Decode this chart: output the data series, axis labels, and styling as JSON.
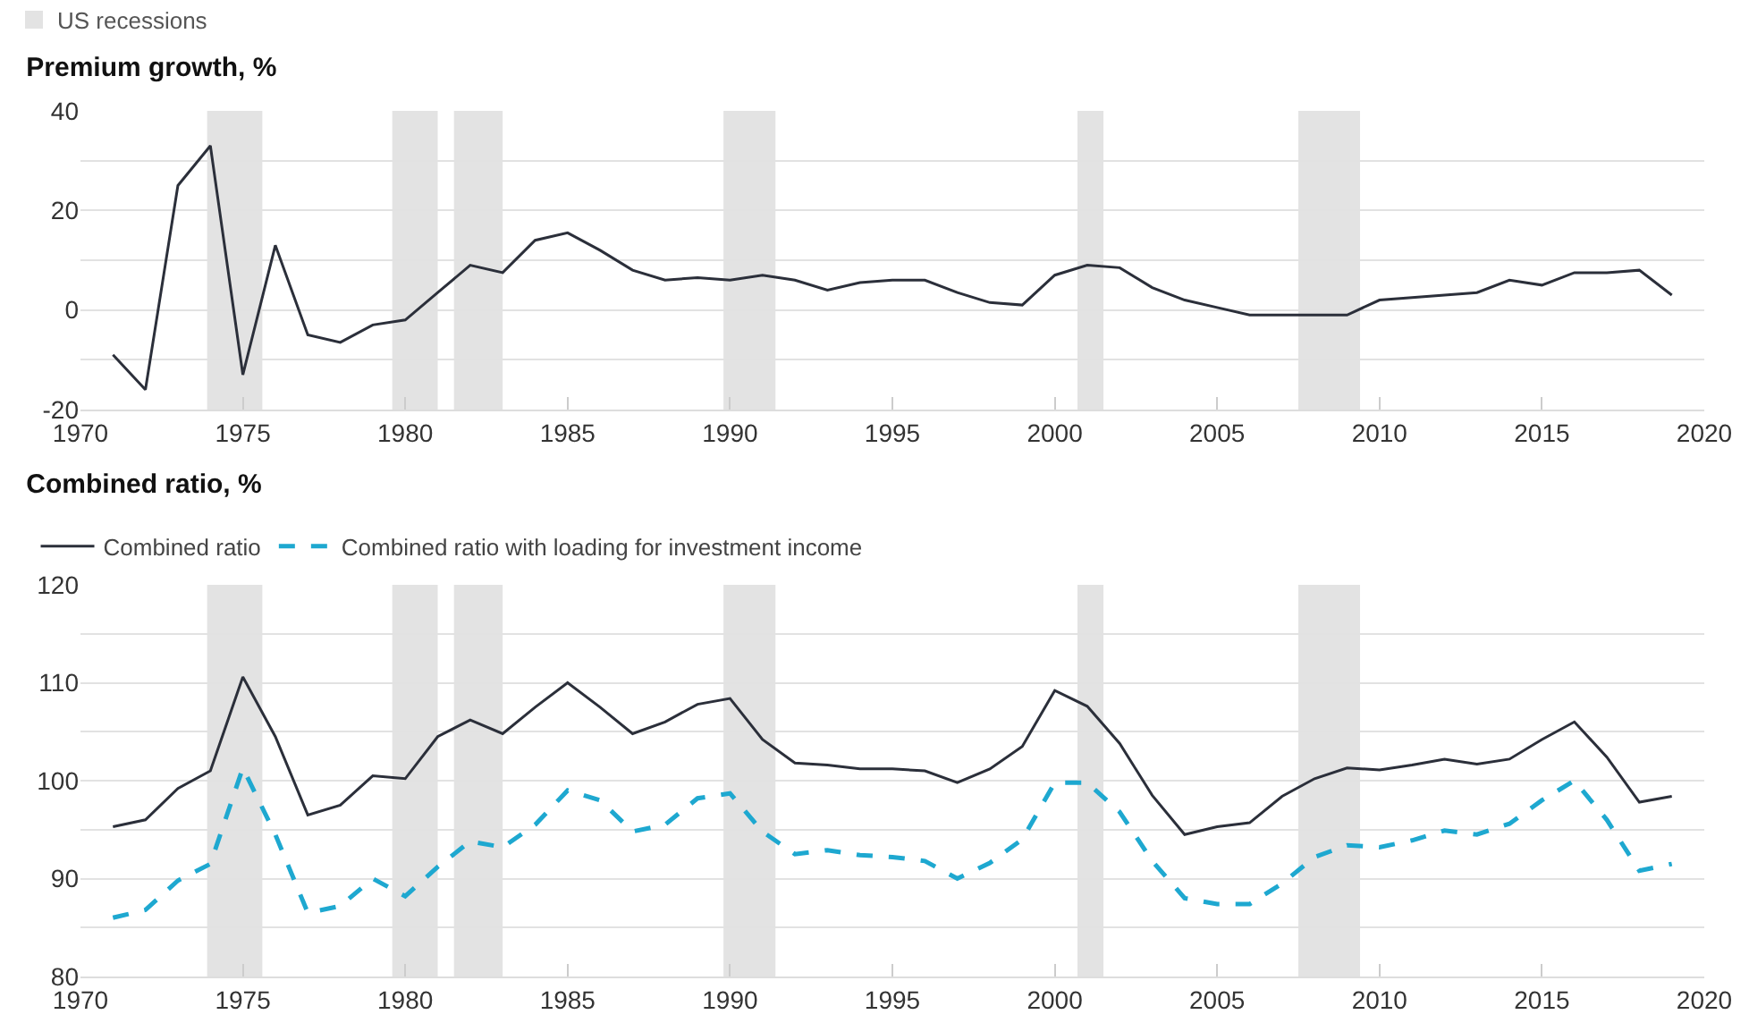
{
  "chart_data": [
    {
      "type": "line",
      "title": "Premium growth, %",
      "x": [
        1971,
        1972,
        1973,
        1974,
        1975,
        1976,
        1977,
        1978,
        1979,
        1980,
        1981,
        1982,
        1983,
        1984,
        1985,
        1986,
        1987,
        1988,
        1989,
        1990,
        1991,
        1992,
        1993,
        1994,
        1995,
        1996,
        1997,
        1998,
        1999,
        2000,
        2001,
        2002,
        2003,
        2004,
        2005,
        2006,
        2007,
        2008,
        2009,
        2010,
        2011,
        2012,
        2013,
        2014,
        2015,
        2016,
        2017,
        2018,
        2019
      ],
      "series": [
        {
          "color": "#2b2f3a",
          "values": [
            -9,
            -16,
            25,
            33,
            -13,
            13,
            -5,
            -6.5,
            -3,
            -2,
            3.5,
            9,
            7.5,
            14,
            15.5,
            12,
            8,
            6,
            6.5,
            6,
            7,
            6,
            4,
            5.5,
            6,
            6,
            3.5,
            1.5,
            1,
            7,
            9,
            8.5,
            4.5,
            2,
            0.5,
            -1,
            -1,
            -1,
            -1,
            2,
            2.5,
            3,
            3.5,
            6,
            5,
            7.5,
            7.5,
            8,
            3
          ]
        }
      ],
      "xlim": [
        1970,
        2020
      ],
      "xticks": [
        1970,
        1975,
        1980,
        1985,
        1990,
        1995,
        2000,
        2005,
        2010,
        2015,
        2020
      ],
      "ylim": [
        -20,
        40
      ],
      "yticks": [
        -20,
        {
          "value": -10,
          "label": null
        },
        0,
        {
          "value": 10,
          "label": null
        },
        20,
        {
          "value": 30,
          "label": null
        },
        40
      ],
      "grid": "y",
      "bands": [
        {
          "axis": "x",
          "from": 1973.9,
          "to": 1975.6,
          "label": "US recessions",
          "color": "#e3e3e3"
        },
        {
          "axis": "x",
          "from": 1979.6,
          "to": 1981.0,
          "color": "#e3e3e3"
        },
        {
          "axis": "x",
          "from": 1981.5,
          "to": 1983.0,
          "color": "#e3e3e3"
        },
        {
          "axis": "x",
          "from": 1989.8,
          "to": 1991.4,
          "color": "#e3e3e3"
        },
        {
          "axis": "x",
          "from": 2000.7,
          "to": 2001.5,
          "color": "#e3e3e3"
        },
        {
          "axis": "x",
          "from": 2007.5,
          "to": 2009.4,
          "color": "#e3e3e3"
        }
      ]
    },
    {
      "type": "line",
      "title": "Combined ratio, %",
      "x": [
        1971,
        1972,
        1973,
        1974,
        1975,
        1976,
        1977,
        1978,
        1979,
        1980,
        1981,
        1982,
        1983,
        1984,
        1985,
        1986,
        1987,
        1988,
        1989,
        1990,
        1991,
        1992,
        1993,
        1994,
        1995,
        1996,
        1997,
        1998,
        1999,
        2000,
        2001,
        2002,
        2003,
        2004,
        2005,
        2006,
        2007,
        2008,
        2009,
        2010,
        2011,
        2012,
        2013,
        2014,
        2015,
        2016,
        2017,
        2018,
        2019
      ],
      "series": [
        {
          "name": "Combined ratio",
          "color": "#2b2f3a",
          "line_style": "solid",
          "values": [
            95.3,
            96,
            99.2,
            101,
            110.6,
            104.5,
            96.5,
            97.5,
            100.5,
            100.2,
            104.5,
            106.2,
            104.8,
            107.5,
            110,
            107.5,
            104.8,
            106,
            107.8,
            108.4,
            104.2,
            101.8,
            101.6,
            101.2,
            101.2,
            101,
            99.8,
            101.2,
            103.5,
            109.2,
            107.6,
            103.8,
            98.5,
            94.5,
            95.3,
            95.7,
            98.4,
            100.2,
            101.3,
            101.1,
            101.6,
            102.2,
            101.7,
            102.2,
            104.2,
            106,
            102.4,
            97.8,
            98.4
          ]
        },
        {
          "name": "Combined ratio with loading for investment income",
          "color": "#1ea8d0",
          "line_style": "dashed",
          "values": [
            86,
            86.8,
            89.8,
            91.5,
            101.3,
            94.5,
            86.5,
            87.2,
            90,
            88.2,
            91.2,
            93.8,
            93.2,
            95.5,
            99,
            98,
            94.8,
            95.5,
            98.2,
            98.7,
            94.8,
            92.5,
            92.9,
            92.4,
            92.2,
            91.8,
            90,
            91.6,
            94,
            99.8,
            99.8,
            96.8,
            91.8,
            88,
            87.4,
            87.4,
            89.5,
            92.2,
            93.4,
            93.2,
            93.9,
            94.9,
            94.5,
            95.6,
            98,
            100,
            96,
            90.8,
            91.5
          ]
        }
      ],
      "xlim": [
        1970,
        2020
      ],
      "xticks": [
        1970,
        1975,
        1980,
        1985,
        1990,
        1995,
        2000,
        2005,
        2010,
        2015,
        2020
      ],
      "ylim": [
        80,
        120
      ],
      "yticks": [
        80,
        {
          "value": 85,
          "label": null
        },
        90,
        {
          "value": 95,
          "label": null
        },
        100,
        {
          "value": 105,
          "label": null
        },
        110,
        {
          "value": 115,
          "label": null
        },
        120
      ],
      "grid": "y",
      "legend": "top left",
      "bands": [
        {
          "axis": "x",
          "from": 1973.9,
          "to": 1975.6,
          "color": "#e3e3e3"
        },
        {
          "axis": "x",
          "from": 1979.6,
          "to": 1981.0,
          "color": "#e3e3e3"
        },
        {
          "axis": "x",
          "from": 1981.5,
          "to": 1983.0,
          "color": "#e3e3e3"
        },
        {
          "axis": "x",
          "from": 1989.8,
          "to": 1991.4,
          "color": "#e3e3e3"
        },
        {
          "axis": "x",
          "from": 2000.7,
          "to": 2001.5,
          "color": "#e3e3e3"
        },
        {
          "axis": "x",
          "from": 2007.5,
          "to": 2009.4,
          "color": "#e3e3e3"
        }
      ]
    }
  ]
}
